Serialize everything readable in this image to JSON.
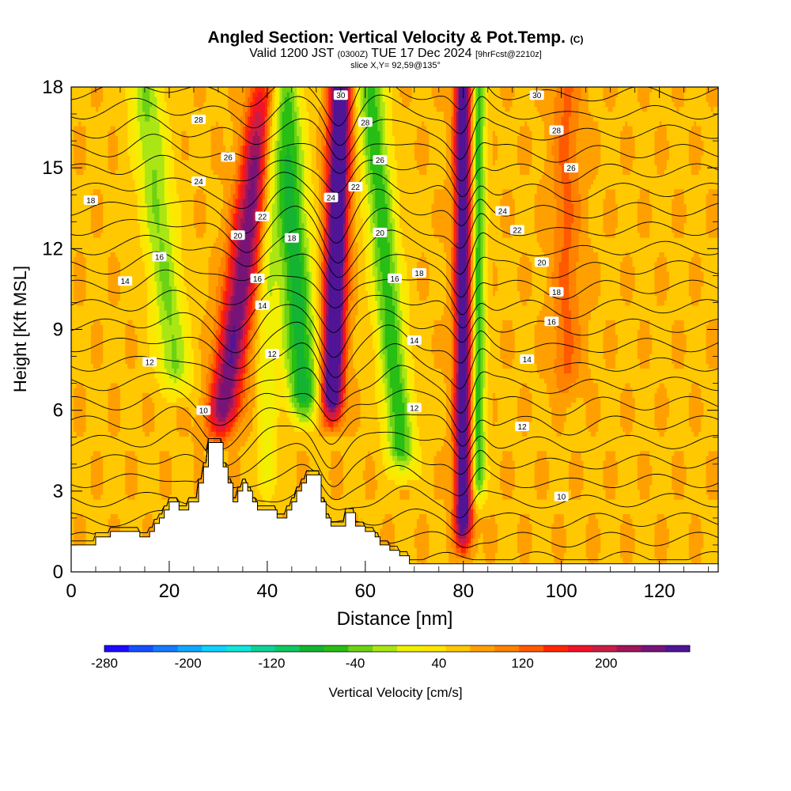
{
  "title": {
    "main": "Angled Section: Vertical Velocity & Pot.Temp.",
    "main_suffix": "(C)",
    "valid_prefix": "Valid 1200 JST",
    "valid_zulu": "(0300Z)",
    "valid_date": "TUE 17 Dec 2024",
    "valid_fcst": "[9hrFcst@2210z]",
    "slice": "slice X,Y= 92,59@135°"
  },
  "chart_data": {
    "type": "heatmap",
    "xlabel": "Distance [nm]",
    "ylabel": "Height [Kft MSL]",
    "xlim": [
      0,
      132
    ],
    "ylim": [
      0,
      18
    ],
    "xticks": [
      0,
      20,
      40,
      60,
      80,
      100,
      120
    ],
    "yticks": [
      0,
      3,
      6,
      9,
      12,
      15,
      18
    ],
    "colorbar": {
      "label": "Vertical Velocity [cm/s]",
      "range": [
        -280,
        280
      ],
      "step": 20,
      "tick_values": [
        -280,
        -200,
        -120,
        -40,
        40,
        120,
        200
      ],
      "colors": [
        "#1e0aff",
        "#1450ff",
        "#147aff",
        "#10a8ff",
        "#10d2ff",
        "#10e6dc",
        "#10d296",
        "#10c864",
        "#14b432",
        "#28be14",
        "#6ed214",
        "#aae614",
        "#f0f000",
        "#ffe600",
        "#ffc800",
        "#ffa000",
        "#ff8200",
        "#ff5a00",
        "#ff2800",
        "#f01428",
        "#c81e46",
        "#a0145a",
        "#781478",
        "#501496"
      ]
    },
    "bands": [
      {
        "name": "up",
        "x_bottom": 30,
        "x_top": 40,
        "strength": 160,
        "width": 3.2,
        "z_min": 4.5
      },
      {
        "name": "down",
        "x_bottom": 22,
        "x_top": 15,
        "strength": -80,
        "width": 3.5,
        "z_min": 6
      },
      {
        "name": "up",
        "x_bottom": 53,
        "x_top": 55,
        "strength": 230,
        "width": 2.2,
        "z_min": 5
      },
      {
        "name": "down",
        "x_bottom": 48,
        "x_top": 43,
        "strength": -130,
        "width": 3.5,
        "z_min": 5
      },
      {
        "name": "down",
        "x_bottom": 68,
        "x_top": 61,
        "strength": -110,
        "width": 3,
        "z_min": 3
      },
      {
        "name": "up",
        "x_bottom": 80,
        "x_top": 80,
        "strength": 200,
        "width": 1.8,
        "z_min": 0.3
      },
      {
        "name": "down",
        "x_bottom": 83,
        "x_top": 83,
        "strength": -120,
        "width": 1.5,
        "z_min": 2
      },
      {
        "name": "up",
        "x_bottom": 101,
        "x_top": 101,
        "strength": 45,
        "width": 3,
        "z_min": 6
      },
      {
        "name": "down",
        "x_bottom": 40,
        "x_top": 40,
        "strength": -50,
        "width": 2,
        "z_min": 2
      }
    ],
    "terrain": [
      [
        0,
        1
      ],
      [
        5,
        1
      ],
      [
        5,
        1.3
      ],
      [
        8,
        1.3
      ],
      [
        8,
        1.5
      ],
      [
        14,
        1.5
      ],
      [
        14,
        1.3
      ],
      [
        16,
        1.3
      ],
      [
        16,
        1.5
      ],
      [
        17,
        1.5
      ],
      [
        17,
        1.8
      ],
      [
        18,
        1.8
      ],
      [
        18,
        2
      ],
      [
        19,
        2
      ],
      [
        19,
        2.3
      ],
      [
        20,
        2.3
      ],
      [
        20,
        2.6
      ],
      [
        22,
        2.6
      ],
      [
        22,
        2.3
      ],
      [
        24,
        2.3
      ],
      [
        24,
        2.6
      ],
      [
        26,
        2.6
      ],
      [
        26,
        3.3
      ],
      [
        27,
        3.3
      ],
      [
        27,
        3.9
      ],
      [
        28,
        3.9
      ],
      [
        28,
        4.8
      ],
      [
        31,
        4.8
      ],
      [
        31,
        3.9
      ],
      [
        32,
        3.9
      ],
      [
        32,
        3.3
      ],
      [
        33,
        3.3
      ],
      [
        33,
        2.6
      ],
      [
        34,
        2.6
      ],
      [
        34,
        3
      ],
      [
        35,
        3
      ],
      [
        35,
        3.3
      ],
      [
        36,
        3.3
      ],
      [
        36,
        3
      ],
      [
        37,
        3
      ],
      [
        37,
        2.6
      ],
      [
        38,
        2.6
      ],
      [
        38,
        2.3
      ],
      [
        42,
        2.3
      ],
      [
        42,
        2
      ],
      [
        44,
        2
      ],
      [
        44,
        2.3
      ],
      [
        45,
        2.3
      ],
      [
        45,
        2.6
      ],
      [
        46,
        2.6
      ],
      [
        46,
        3
      ],
      [
        47,
        3
      ],
      [
        47,
        3.3
      ],
      [
        48,
        3.3
      ],
      [
        48,
        3.6
      ],
      [
        51,
        3.6
      ],
      [
        51,
        2.6
      ],
      [
        52,
        2.6
      ],
      [
        52,
        2
      ],
      [
        53,
        2
      ],
      [
        53,
        1.7
      ],
      [
        56,
        1.7
      ],
      [
        56,
        2.2
      ],
      [
        58,
        2.2
      ],
      [
        58,
        1.7
      ],
      [
        60,
        1.7
      ],
      [
        60,
        1.5
      ],
      [
        62,
        1.5
      ],
      [
        62,
        1.3
      ],
      [
        63,
        1.3
      ],
      [
        63,
        1
      ],
      [
        65,
        1
      ],
      [
        65,
        0.8
      ],
      [
        67,
        0.8
      ],
      [
        67,
        0.6
      ],
      [
        69,
        0.6
      ],
      [
        69,
        0.3
      ],
      [
        132,
        0.3
      ]
    ],
    "contours": {
      "levels": [
        6,
        7,
        8,
        9,
        10,
        11,
        12,
        13,
        14,
        15,
        16,
        17,
        18,
        19,
        20,
        21,
        22,
        23,
        24,
        25,
        26,
        27,
        28,
        29,
        30
      ],
      "labels": [
        {
          "text": "18",
          "x": 4,
          "z": 13.8
        },
        {
          "text": "16",
          "x": 18,
          "z": 11.7
        },
        {
          "text": "14",
          "x": 11,
          "z": 10.8
        },
        {
          "text": "12",
          "x": 16,
          "z": 7.8
        },
        {
          "text": "10",
          "x": 27,
          "z": 6
        },
        {
          "text": "28",
          "x": 26,
          "z": 16.8
        },
        {
          "text": "26",
          "x": 32,
          "z": 15.4
        },
        {
          "text": "24",
          "x": 26,
          "z": 14.5
        },
        {
          "text": "20",
          "x": 34,
          "z": 12.5
        },
        {
          "text": "22",
          "x": 39,
          "z": 13.2
        },
        {
          "text": "18",
          "x": 45,
          "z": 12.4
        },
        {
          "text": "16",
          "x": 38,
          "z": 10.9
        },
        {
          "text": "14",
          "x": 39,
          "z": 9.9
        },
        {
          "text": "12",
          "x": 41,
          "z": 8.1
        },
        {
          "text": "30",
          "x": 55,
          "z": 17.7
        },
        {
          "text": "28",
          "x": 60,
          "z": 16.7
        },
        {
          "text": "26",
          "x": 63,
          "z": 15.3
        },
        {
          "text": "24",
          "x": 53,
          "z": 13.9
        },
        {
          "text": "22",
          "x": 58,
          "z": 14.3
        },
        {
          "text": "20",
          "x": 63,
          "z": 12.6
        },
        {
          "text": "16",
          "x": 66,
          "z": 10.9
        },
        {
          "text": "18",
          "x": 71,
          "z": 11.1
        },
        {
          "text": "14",
          "x": 70,
          "z": 8.6
        },
        {
          "text": "12",
          "x": 70,
          "z": 6.1
        },
        {
          "text": "30",
          "x": 95,
          "z": 17.7
        },
        {
          "text": "28",
          "x": 99,
          "z": 16.4
        },
        {
          "text": "26",
          "x": 102,
          "z": 15
        },
        {
          "text": "24",
          "x": 88,
          "z": 13.4
        },
        {
          "text": "22",
          "x": 91,
          "z": 12.7
        },
        {
          "text": "20",
          "x": 96,
          "z": 11.5
        },
        {
          "text": "18",
          "x": 99,
          "z": 10.4
        },
        {
          "text": "16",
          "x": 98,
          "z": 9.3
        },
        {
          "text": "14",
          "x": 93,
          "z": 7.9
        },
        {
          "text": "12",
          "x": 92,
          "z": 5.4
        },
        {
          "text": "10",
          "x": 100,
          "z": 2.8
        }
      ]
    }
  }
}
